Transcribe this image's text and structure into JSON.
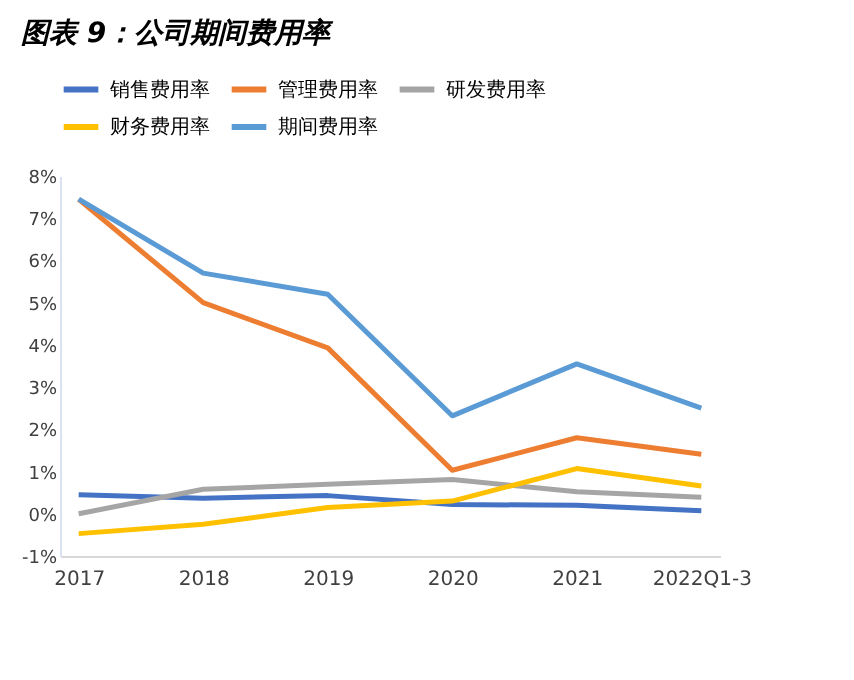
{
  "chart_data": {
    "type": "line",
    "title": "图表 9：公司期间费用率",
    "categories": [
      "2017",
      "2018",
      "2019",
      "2020",
      "2021",
      "2022Q1-3"
    ],
    "series": [
      {
        "name": "销售费用率",
        "color": "#4472c4",
        "values": [
          0.45,
          0.37,
          0.43,
          0.22,
          0.2,
          0.07
        ]
      },
      {
        "name": "管理费用率",
        "color": "#ed7d31",
        "values": [
          7.45,
          5.0,
          3.93,
          1.03,
          1.8,
          1.41
        ]
      },
      {
        "name": "研发费用率",
        "color": "#a5a5a5",
        "values": [
          0.0,
          0.58,
          0.7,
          0.81,
          0.52,
          0.39
        ]
      },
      {
        "name": "财务费用率",
        "color": "#ffc000",
        "values": [
          -0.47,
          -0.25,
          0.15,
          0.3,
          1.07,
          0.66
        ]
      },
      {
        "name": "期间费用率",
        "color": "#5b9bd5",
        "values": [
          7.45,
          5.7,
          5.2,
          2.32,
          3.55,
          2.5
        ]
      }
    ],
    "ylim": [
      -1,
      8
    ],
    "yticks": [
      {
        "value": -1,
        "label": "-1%"
      },
      {
        "value": 0,
        "label": "0%"
      },
      {
        "value": 1,
        "label": "1%"
      },
      {
        "value": 2,
        "label": "2%"
      },
      {
        "value": 3,
        "label": "3%"
      },
      {
        "value": 4,
        "label": "4%"
      },
      {
        "value": 5,
        "label": "5%"
      },
      {
        "value": 6,
        "label": "6%"
      },
      {
        "value": 7,
        "label": "7%"
      },
      {
        "value": 8,
        "label": "8%"
      }
    ],
    "grid": false,
    "legend": "top",
    "marker": "none",
    "line_style": "solid"
  }
}
